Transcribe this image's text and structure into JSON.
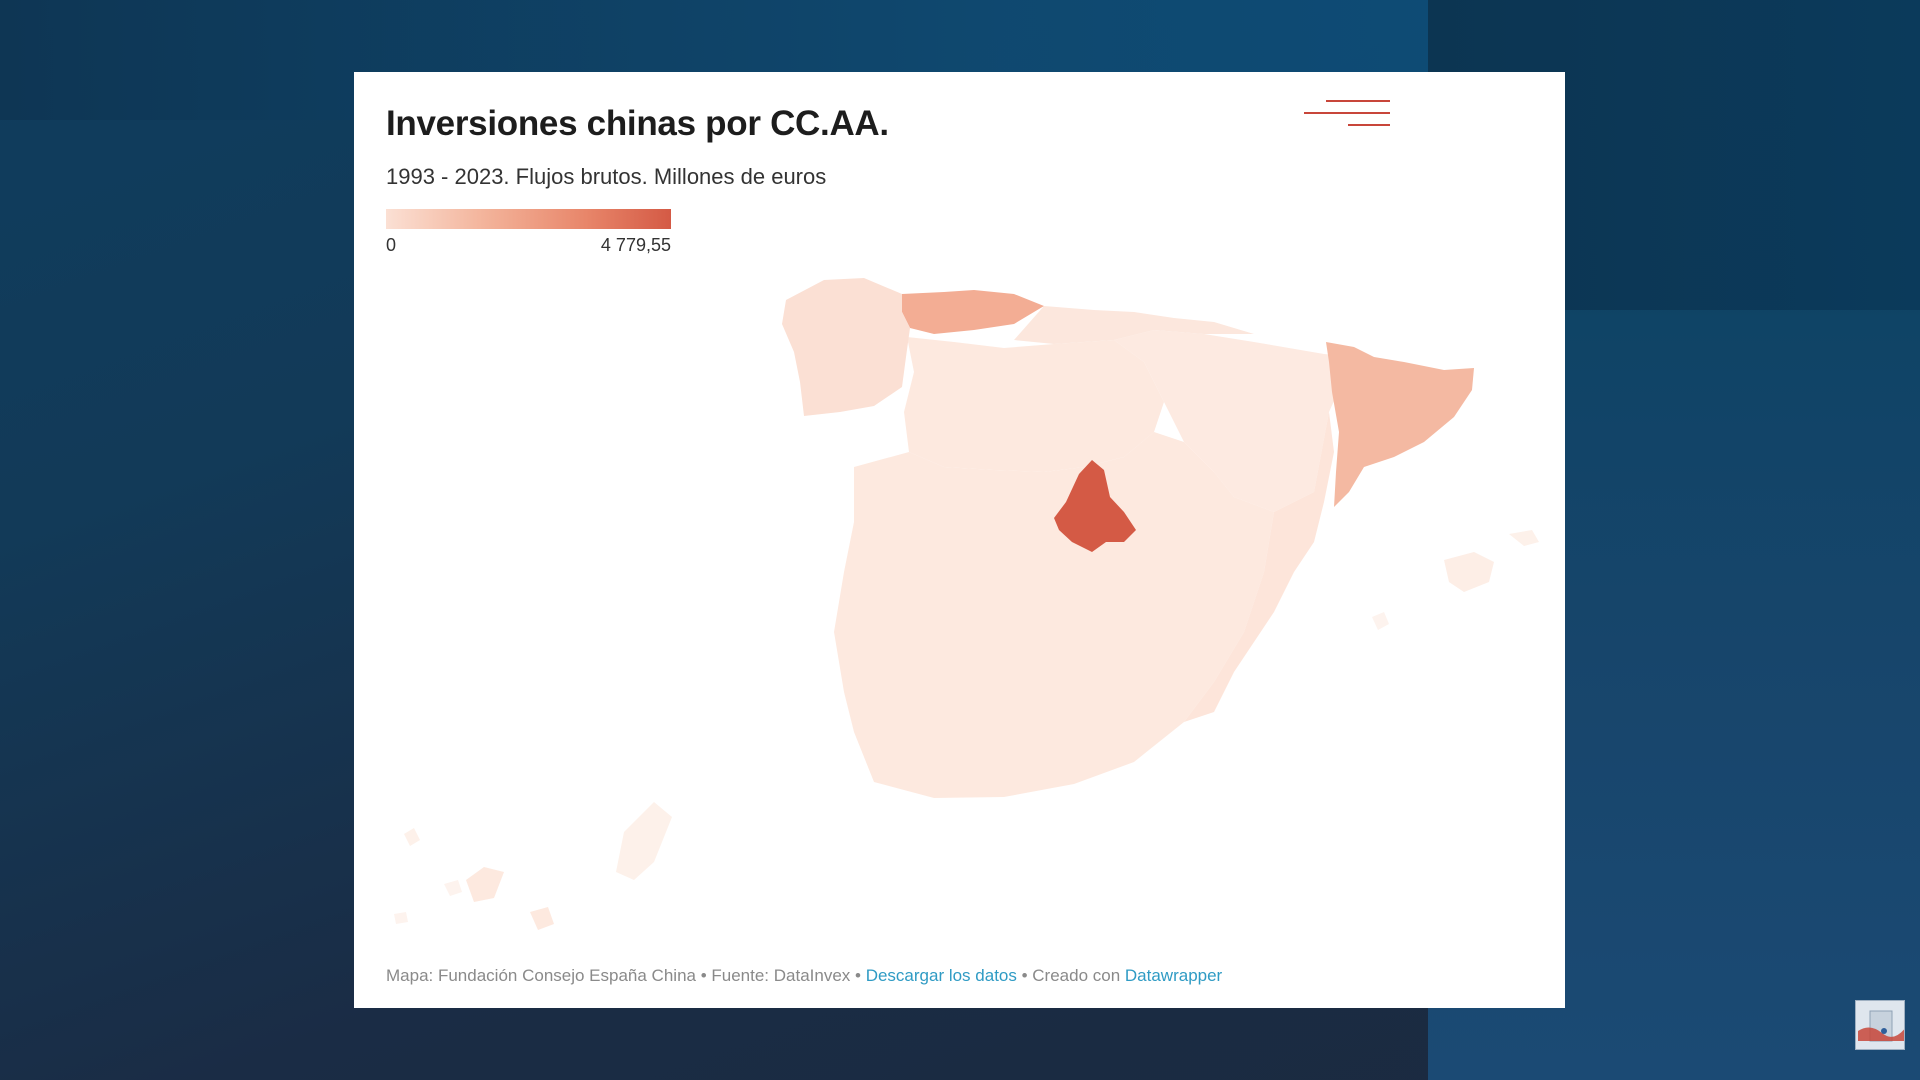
{
  "chart_data": {
    "type": "choropleth",
    "title": "Inversiones chinas por CC.AA.",
    "subtitle": "1993 - 2023. Flujos brutos. Millones de euros",
    "legend": {
      "min_label": "0",
      "max_label": "4 779,55",
      "min": 0,
      "max": 4779.55,
      "color_low": "#fbe0d4",
      "color_high": "#d45a45"
    }
  },
  "footer": {
    "prefix": "Mapa: Fundación Consejo España China • Fuente: DataInvex • ",
    "download_link": "Descargar los datos",
    "middle": " • Creado con ",
    "tool_link": "Datawrapper"
  },
  "colors": {
    "madrid": "#d45a45",
    "catalonia": "#f4b9a2",
    "asturias": "#f3ad94",
    "galicia": "#fbe0d4",
    "base": "#fde9df",
    "menu_accent": "#c8463a",
    "link": "#2f9bc4"
  },
  "icons": {
    "menu": "hamburger-menu-icon",
    "channel_logo": "channel-logo-icon"
  }
}
